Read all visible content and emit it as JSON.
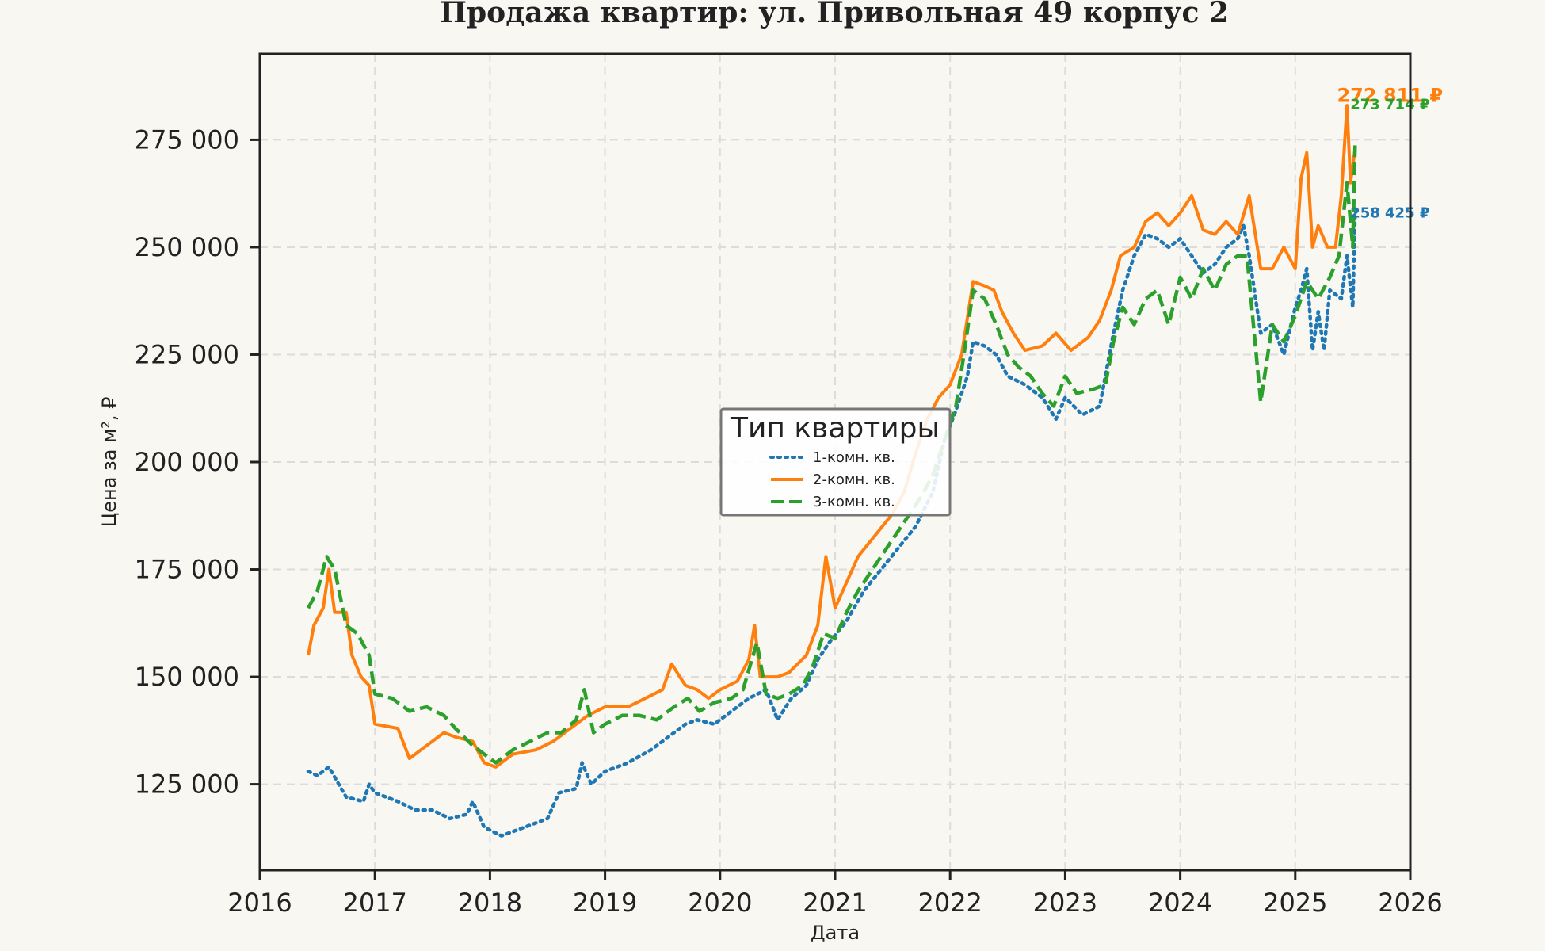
{
  "chart_data": {
    "type": "line",
    "title": "Продажа квартир: ул. Привольная 49 корпус 2",
    "xlabel": "Дата",
    "ylabel": "Цена за м², ₽",
    "xlim": [
      2016,
      2026
    ],
    "ylim": [
      105000,
      295000
    ],
    "x_ticks": [
      {
        "value": 2016,
        "label": "2016"
      },
      {
        "value": 2017,
        "label": "2017"
      },
      {
        "value": 2018,
        "label": "2018"
      },
      {
        "value": 2019,
        "label": "2019"
      },
      {
        "value": 2020,
        "label": "2020"
      },
      {
        "value": 2021,
        "label": "2021"
      },
      {
        "value": 2022,
        "label": "2022"
      },
      {
        "value": 2023,
        "label": "2023"
      },
      {
        "value": 2024,
        "label": "2024"
      },
      {
        "value": 2025,
        "label": "2025"
      },
      {
        "value": 2026,
        "label": "2026"
      }
    ],
    "y_ticks": [
      {
        "value": 125000,
        "label": "125 000"
      },
      {
        "value": 150000,
        "label": "150 000"
      },
      {
        "value": 175000,
        "label": "175 000"
      },
      {
        "value": 200000,
        "label": "200 000"
      },
      {
        "value": 225000,
        "label": "225 000"
      },
      {
        "value": 250000,
        "label": "250 000"
      },
      {
        "value": 275000,
        "label": "275 000"
      }
    ],
    "grid": true,
    "legend": {
      "title": "Тип квартиры",
      "placement": "center"
    },
    "series": [
      {
        "name": "1-комн. кв.",
        "color": "#1f77b4",
        "style": "dotted",
        "end_label": "258 425 ₽",
        "points": [
          [
            2016.42,
            128000
          ],
          [
            2016.5,
            127000
          ],
          [
            2016.6,
            129000
          ],
          [
            2016.75,
            122000
          ],
          [
            2016.9,
            121000
          ],
          [
            2016.95,
            125000
          ],
          [
            2017.0,
            123000
          ],
          [
            2017.2,
            121000
          ],
          [
            2017.35,
            119000
          ],
          [
            2017.5,
            119000
          ],
          [
            2017.65,
            117000
          ],
          [
            2017.8,
            118000
          ],
          [
            2017.85,
            121000
          ],
          [
            2017.95,
            115000
          ],
          [
            2018.1,
            113000
          ],
          [
            2018.3,
            115000
          ],
          [
            2018.5,
            117000
          ],
          [
            2018.6,
            123000
          ],
          [
            2018.75,
            124000
          ],
          [
            2018.8,
            130000
          ],
          [
            2018.88,
            125000
          ],
          [
            2019.0,
            128000
          ],
          [
            2019.2,
            130000
          ],
          [
            2019.4,
            133000
          ],
          [
            2019.55,
            136000
          ],
          [
            2019.7,
            139000
          ],
          [
            2019.8,
            140000
          ],
          [
            2019.95,
            139000
          ],
          [
            2020.1,
            142000
          ],
          [
            2020.25,
            145000
          ],
          [
            2020.4,
            147000
          ],
          [
            2020.5,
            140000
          ],
          [
            2020.62,
            145000
          ],
          [
            2020.75,
            148000
          ],
          [
            2020.85,
            154000
          ],
          [
            2020.95,
            158000
          ],
          [
            2021.1,
            163000
          ],
          [
            2021.25,
            170000
          ],
          [
            2021.4,
            175000
          ],
          [
            2021.55,
            180000
          ],
          [
            2021.7,
            185000
          ],
          [
            2021.85,
            193000
          ],
          [
            2021.95,
            205000
          ],
          [
            2022.05,
            212000
          ],
          [
            2022.15,
            220000
          ],
          [
            2022.2,
            228000
          ],
          [
            2022.3,
            227000
          ],
          [
            2022.4,
            225000
          ],
          [
            2022.5,
            220000
          ],
          [
            2022.65,
            218000
          ],
          [
            2022.8,
            215000
          ],
          [
            2022.92,
            210000
          ],
          [
            2023.0,
            215000
          ],
          [
            2023.15,
            211000
          ],
          [
            2023.3,
            213000
          ],
          [
            2023.42,
            230000
          ],
          [
            2023.5,
            240000
          ],
          [
            2023.6,
            248000
          ],
          [
            2023.7,
            253000
          ],
          [
            2023.8,
            252000
          ],
          [
            2023.9,
            250000
          ],
          [
            2024.0,
            252000
          ],
          [
            2024.1,
            248000
          ],
          [
            2024.2,
            244000
          ],
          [
            2024.3,
            246000
          ],
          [
            2024.4,
            250000
          ],
          [
            2024.5,
            252000
          ],
          [
            2024.55,
            255000
          ],
          [
            2024.6,
            248000
          ],
          [
            2024.7,
            230000
          ],
          [
            2024.8,
            232000
          ],
          [
            2024.9,
            225000
          ],
          [
            2025.0,
            236000
          ],
          [
            2025.05,
            240000
          ],
          [
            2025.1,
            245000
          ],
          [
            2025.15,
            226000
          ],
          [
            2025.2,
            235000
          ],
          [
            2025.25,
            226000
          ],
          [
            2025.3,
            240000
          ],
          [
            2025.4,
            238000
          ],
          [
            2025.45,
            248000
          ],
          [
            2025.5,
            236000
          ],
          [
            2025.52,
            258425
          ]
        ]
      },
      {
        "name": "2-комн. кв.",
        "color": "#ff7f0e",
        "style": "solid",
        "end_label": "272 811 ₽",
        "points": [
          [
            2016.42,
            155000
          ],
          [
            2016.47,
            162000
          ],
          [
            2016.55,
            166000
          ],
          [
            2016.6,
            175000
          ],
          [
            2016.65,
            165000
          ],
          [
            2016.75,
            165000
          ],
          [
            2016.8,
            155000
          ],
          [
            2016.88,
            150000
          ],
          [
            2016.95,
            148000
          ],
          [
            2017.0,
            139000
          ],
          [
            2017.2,
            138000
          ],
          [
            2017.3,
            131000
          ],
          [
            2017.45,
            134000
          ],
          [
            2017.6,
            137000
          ],
          [
            2017.7,
            136000
          ],
          [
            2017.85,
            135000
          ],
          [
            2017.95,
            130000
          ],
          [
            2018.05,
            129000
          ],
          [
            2018.2,
            132000
          ],
          [
            2018.4,
            133000
          ],
          [
            2018.55,
            135000
          ],
          [
            2018.7,
            138000
          ],
          [
            2018.85,
            141000
          ],
          [
            2019.0,
            143000
          ],
          [
            2019.2,
            143000
          ],
          [
            2019.35,
            145000
          ],
          [
            2019.5,
            147000
          ],
          [
            2019.58,
            153000
          ],
          [
            2019.65,
            150000
          ],
          [
            2019.7,
            148000
          ],
          [
            2019.8,
            147000
          ],
          [
            2019.9,
            145000
          ],
          [
            2020.0,
            147000
          ],
          [
            2020.15,
            149000
          ],
          [
            2020.25,
            154000
          ],
          [
            2020.3,
            162000
          ],
          [
            2020.35,
            150000
          ],
          [
            2020.5,
            150000
          ],
          [
            2020.6,
            151000
          ],
          [
            2020.75,
            155000
          ],
          [
            2020.85,
            162000
          ],
          [
            2020.92,
            178000
          ],
          [
            2021.0,
            166000
          ],
          [
            2021.1,
            172000
          ],
          [
            2021.2,
            178000
          ],
          [
            2021.35,
            183000
          ],
          [
            2021.5,
            188000
          ],
          [
            2021.6,
            193000
          ],
          [
            2021.7,
            202000
          ],
          [
            2021.8,
            210000
          ],
          [
            2021.9,
            215000
          ],
          [
            2022.0,
            218000
          ],
          [
            2022.1,
            225000
          ],
          [
            2022.2,
            242000
          ],
          [
            2022.3,
            241000
          ],
          [
            2022.38,
            240000
          ],
          [
            2022.45,
            235000
          ],
          [
            2022.55,
            230000
          ],
          [
            2022.65,
            226000
          ],
          [
            2022.8,
            227000
          ],
          [
            2022.92,
            230000
          ],
          [
            2023.05,
            226000
          ],
          [
            2023.2,
            229000
          ],
          [
            2023.3,
            233000
          ],
          [
            2023.4,
            240000
          ],
          [
            2023.48,
            248000
          ],
          [
            2023.6,
            250000
          ],
          [
            2023.7,
            256000
          ],
          [
            2023.8,
            258000
          ],
          [
            2023.9,
            255000
          ],
          [
            2024.0,
            258000
          ],
          [
            2024.1,
            262000
          ],
          [
            2024.2,
            254000
          ],
          [
            2024.3,
            253000
          ],
          [
            2024.4,
            256000
          ],
          [
            2024.5,
            253000
          ],
          [
            2024.6,
            262000
          ],
          [
            2024.7,
            245000
          ],
          [
            2024.8,
            245000
          ],
          [
            2024.9,
            250000
          ],
          [
            2025.0,
            245000
          ],
          [
            2025.05,
            266000
          ],
          [
            2025.1,
            272000
          ],
          [
            2025.15,
            250000
          ],
          [
            2025.2,
            255000
          ],
          [
            2025.28,
            250000
          ],
          [
            2025.35,
            250000
          ],
          [
            2025.4,
            262000
          ],
          [
            2025.45,
            283000
          ],
          [
            2025.48,
            265000
          ],
          [
            2025.52,
            272811
          ]
        ]
      },
      {
        "name": "3-комн. кв.",
        "color": "#2ca02c",
        "style": "dashed",
        "end_label": "273 714 ₽",
        "points": [
          [
            2016.42,
            166000
          ],
          [
            2016.5,
            170000
          ],
          [
            2016.58,
            178000
          ],
          [
            2016.65,
            175000
          ],
          [
            2016.75,
            162000
          ],
          [
            2016.85,
            160000
          ],
          [
            2016.95,
            155000
          ],
          [
            2017.0,
            146000
          ],
          [
            2017.15,
            145000
          ],
          [
            2017.3,
            142000
          ],
          [
            2017.45,
            143000
          ],
          [
            2017.6,
            141000
          ],
          [
            2017.7,
            138000
          ],
          [
            2017.85,
            134000
          ],
          [
            2017.95,
            132000
          ],
          [
            2018.05,
            130000
          ],
          [
            2018.2,
            133000
          ],
          [
            2018.35,
            135000
          ],
          [
            2018.5,
            137000
          ],
          [
            2018.62,
            137000
          ],
          [
            2018.75,
            140000
          ],
          [
            2018.82,
            147000
          ],
          [
            2018.9,
            137000
          ],
          [
            2019.0,
            139000
          ],
          [
            2019.15,
            141000
          ],
          [
            2019.3,
            141000
          ],
          [
            2019.45,
            140000
          ],
          [
            2019.6,
            143000
          ],
          [
            2019.72,
            145000
          ],
          [
            2019.82,
            142000
          ],
          [
            2019.95,
            144000
          ],
          [
            2020.1,
            145000
          ],
          [
            2020.2,
            147000
          ],
          [
            2020.32,
            158000
          ],
          [
            2020.4,
            146000
          ],
          [
            2020.5,
            145000
          ],
          [
            2020.6,
            146000
          ],
          [
            2020.72,
            148000
          ],
          [
            2020.8,
            152000
          ],
          [
            2020.9,
            160000
          ],
          [
            2021.0,
            159000
          ],
          [
            2021.1,
            165000
          ],
          [
            2021.2,
            170000
          ],
          [
            2021.3,
            174000
          ],
          [
            2021.45,
            180000
          ],
          [
            2021.55,
            184000
          ],
          [
            2021.65,
            188000
          ],
          [
            2021.75,
            192000
          ],
          [
            2021.85,
            197000
          ],
          [
            2021.95,
            205000
          ],
          [
            2022.05,
            213000
          ],
          [
            2022.12,
            225000
          ],
          [
            2022.2,
            240000
          ],
          [
            2022.3,
            238000
          ],
          [
            2022.4,
            232000
          ],
          [
            2022.5,
            225000
          ],
          [
            2022.6,
            222000
          ],
          [
            2022.7,
            220000
          ],
          [
            2022.8,
            216000
          ],
          [
            2022.9,
            213000
          ],
          [
            2023.0,
            220000
          ],
          [
            2023.1,
            216000
          ],
          [
            2023.25,
            217000
          ],
          [
            2023.35,
            218000
          ],
          [
            2023.42,
            228000
          ],
          [
            2023.5,
            236000
          ],
          [
            2023.6,
            232000
          ],
          [
            2023.7,
            238000
          ],
          [
            2023.8,
            240000
          ],
          [
            2023.9,
            232000
          ],
          [
            2024.0,
            243000
          ],
          [
            2024.1,
            238000
          ],
          [
            2024.2,
            245000
          ],
          [
            2024.3,
            240000
          ],
          [
            2024.4,
            246000
          ],
          [
            2024.5,
            248000
          ],
          [
            2024.58,
            248000
          ],
          [
            2024.65,
            228000
          ],
          [
            2024.7,
            214000
          ],
          [
            2024.8,
            232000
          ],
          [
            2024.9,
            228000
          ],
          [
            2025.0,
            234000
          ],
          [
            2025.1,
            242000
          ],
          [
            2025.2,
            238000
          ],
          [
            2025.3,
            243000
          ],
          [
            2025.38,
            248000
          ],
          [
            2025.45,
            265000
          ],
          [
            2025.5,
            250000
          ],
          [
            2025.52,
            273714
          ]
        ]
      }
    ]
  }
}
